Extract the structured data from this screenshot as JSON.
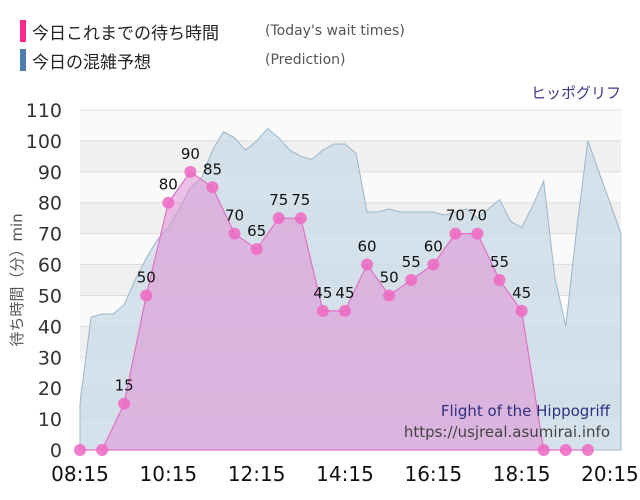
{
  "legend": [
    {
      "label": "今日これまでの待ち時間",
      "note": "(Today's wait times)",
      "color": "#ff2a8e"
    },
    {
      "label": "今日の混雑予想",
      "note": "(Prediction)",
      "color": "#4d7fae"
    }
  ],
  "attraction_jp": "ヒッポグリフ",
  "attraction_en": "Flight of the Hippogriff",
  "source_url": "https://usjreal.asumirai.info",
  "chart_data": {
    "type": "area",
    "ylabel": "待ち時間（分）min",
    "ylim": [
      0,
      110
    ],
    "yticks": [
      0,
      10,
      20,
      30,
      40,
      50,
      60,
      70,
      80,
      90,
      100,
      110
    ],
    "xlim": [
      "08:15",
      "20:30"
    ],
    "xtick_labels": [
      "08:15",
      "10:15",
      "12:15",
      "14:15",
      "16:15",
      "18:15",
      "20:15"
    ],
    "grid": true,
    "series": [
      {
        "name": "今日これまでの待ち時間",
        "color": "#e94fb0",
        "x": [
          "08:15",
          "08:45",
          "09:15",
          "09:45",
          "10:15",
          "10:45",
          "11:15",
          "11:45",
          "12:15",
          "12:45",
          "13:15",
          "13:45",
          "14:15",
          "14:45",
          "15:15",
          "15:45",
          "16:15",
          "16:45",
          "17:15",
          "17:45",
          "18:15",
          "18:45",
          "19:15",
          "19:45"
        ],
        "values": [
          0,
          0,
          15,
          50,
          80,
          90,
          85,
          70,
          65,
          75,
          75,
          45,
          45,
          60,
          50,
          55,
          60,
          70,
          70,
          55,
          45,
          0,
          0,
          0
        ]
      },
      {
        "name": "今日の混雑予想",
        "color": "#a9c1d3",
        "x": [
          "08:15",
          "08:30",
          "08:45",
          "09:00",
          "09:15",
          "09:30",
          "09:45",
          "10:00",
          "10:15",
          "10:30",
          "10:45",
          "11:00",
          "11:15",
          "11:30",
          "11:45",
          "12:00",
          "12:15",
          "12:30",
          "12:45",
          "13:00",
          "13:15",
          "13:30",
          "13:45",
          "14:00",
          "14:15",
          "14:30",
          "14:45",
          "15:00",
          "15:15",
          "15:30",
          "15:45",
          "16:00",
          "16:15",
          "16:30",
          "16:45",
          "17:00",
          "17:15",
          "17:30",
          "17:45",
          "18:00",
          "18:15",
          "18:30",
          "18:45",
          "19:00",
          "19:15",
          "19:30",
          "19:45",
          "20:00",
          "20:15",
          "20:30"
        ],
        "values": [
          15,
          43,
          44,
          44,
          47,
          55,
          62,
          68,
          72,
          78,
          85,
          88,
          97,
          103,
          101,
          97,
          100,
          104,
          101,
          97,
          95,
          94,
          97,
          99,
          99,
          96,
          77,
          77,
          78,
          77,
          77,
          77,
          77,
          76,
          77,
          78,
          75,
          78,
          81,
          74,
          72,
          79,
          87,
          56,
          40,
          72,
          100,
          90,
          80,
          70
        ]
      }
    ],
    "point_labels": [
      {
        "x": "09:15",
        "value": 15
      },
      {
        "x": "09:45",
        "value": 50
      },
      {
        "x": "10:15",
        "value": 80
      },
      {
        "x": "10:45",
        "value": 90
      },
      {
        "x": "11:15",
        "value": 85
      },
      {
        "x": "11:45",
        "value": 70
      },
      {
        "x": "12:15",
        "value": 65
      },
      {
        "x": "12:45",
        "value": 75
      },
      {
        "x": "13:15",
        "value": 75
      },
      {
        "x": "13:45",
        "value": 45
      },
      {
        "x": "14:15",
        "value": 45
      },
      {
        "x": "14:45",
        "value": 60
      },
      {
        "x": "15:15",
        "value": 50
      },
      {
        "x": "15:45",
        "value": 55
      },
      {
        "x": "16:15",
        "value": 60
      },
      {
        "x": "16:45",
        "value": 70
      },
      {
        "x": "17:15",
        "value": 70
      },
      {
        "x": "17:45",
        "value": 55
      },
      {
        "x": "18:15",
        "value": 45
      }
    ]
  }
}
